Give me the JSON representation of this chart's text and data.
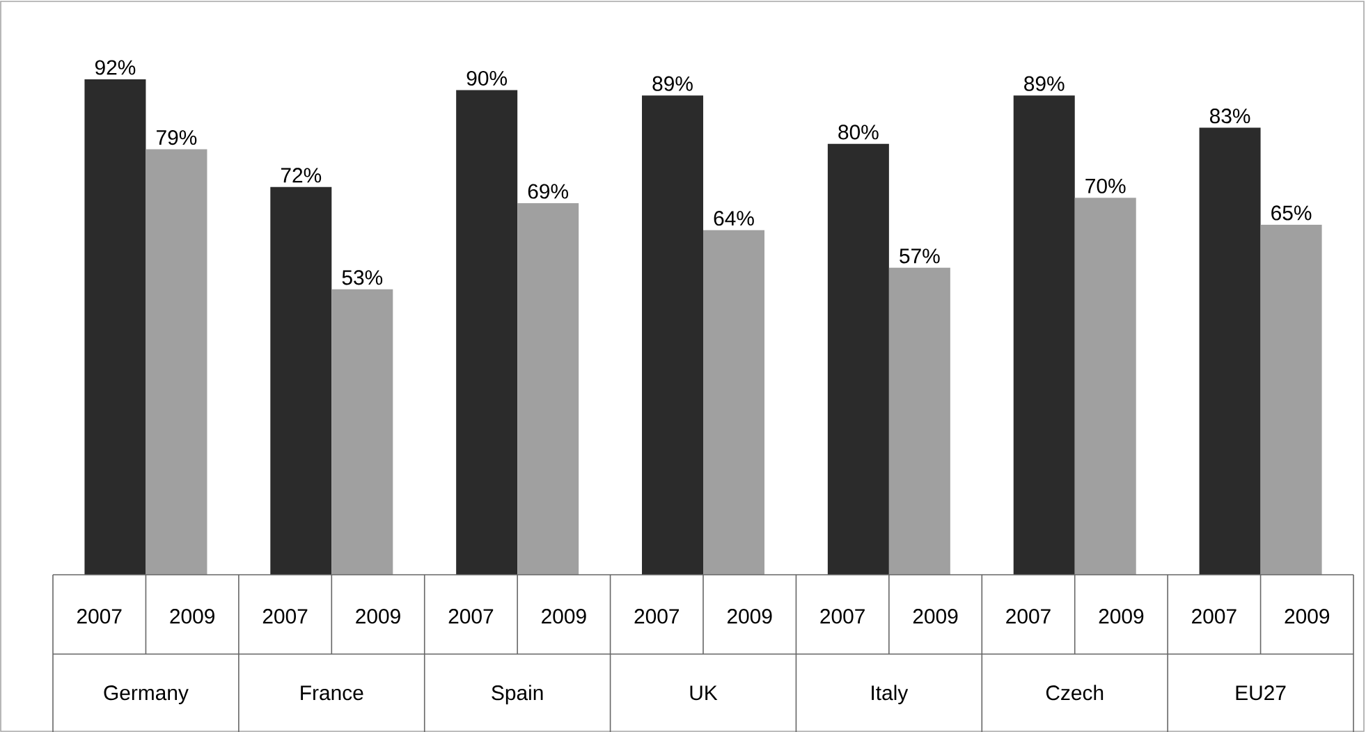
{
  "chart_data": {
    "type": "bar",
    "categories": [
      "Germany",
      "France",
      "Spain",
      "UK",
      "Italy",
      "Czech",
      "EU27"
    ],
    "series": [
      {
        "name": "2007",
        "color": "#2b2b2b",
        "values": [
          92,
          72,
          90,
          89,
          80,
          89,
          83
        ],
        "value_labels": [
          "92%",
          "72%",
          "90%",
          "89%",
          "80%",
          "89%",
          "83%"
        ]
      },
      {
        "name": "2009",
        "color": "#a0a0a0",
        "values": [
          79,
          53,
          69,
          64,
          57,
          70,
          65
        ],
        "value_labels": [
          "79%",
          "53%",
          "69%",
          "64%",
          "57%",
          "70%",
          "65%"
        ]
      }
    ]
  }
}
